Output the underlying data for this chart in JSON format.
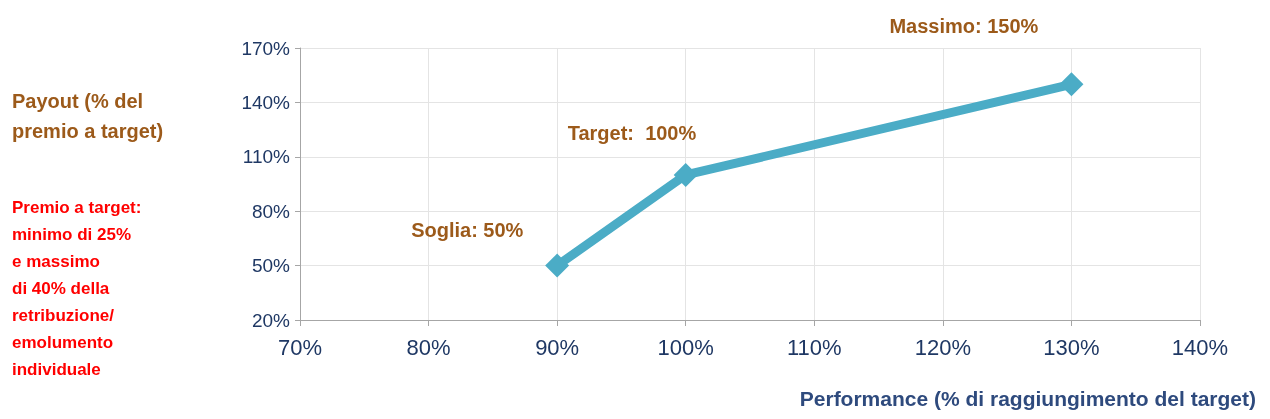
{
  "chart_data": {
    "type": "line",
    "xlabel": "Performance (% di raggiungimento del target)",
    "ylabel": "Payout (% del\npremio a target)",
    "x": [
      90,
      100,
      130
    ],
    "series": [
      {
        "color": "#4bacc6",
        "values": [
          50,
          100,
          150
        ]
      }
    ],
    "xlim": [
      70,
      140
    ],
    "xticks": [
      {
        "value": 70,
        "label": "70%"
      },
      {
        "value": 80,
        "label": "80%"
      },
      {
        "value": 90,
        "label": "90%"
      },
      {
        "value": 100,
        "label": "100%"
      },
      {
        "value": 110,
        "label": "110%"
      },
      {
        "value": 120,
        "label": "120%"
      },
      {
        "value": 130,
        "label": "130%"
      },
      {
        "value": 140,
        "label": "140%"
      }
    ],
    "ylim": [
      20,
      170
    ],
    "yticks": [
      {
        "value": 20,
        "label": "20%"
      },
      {
        "value": 50,
        "label": "50%"
      },
      {
        "value": 80,
        "label": "80%"
      },
      {
        "value": 110,
        "label": "110%"
      },
      {
        "value": 140,
        "label": "140%"
      },
      {
        "value": 170,
        "label": "170%"
      }
    ],
    "annotations": [
      {
        "text": "Soglia: 50%",
        "x": 90,
        "y": 50
      },
      {
        "text": "Target:  100%",
        "x": 100,
        "y": 100
      },
      {
        "text": "Massimo: 150%",
        "x": 130,
        "y": 150
      },
      "Premio a target:\nminimo di 25%\ne massimo\ndi 40% della\nretribuzione/\nemolumento\nindividuale"
    ],
    "grid": true,
    "marker": "diamond",
    "line_style": "solid"
  }
}
